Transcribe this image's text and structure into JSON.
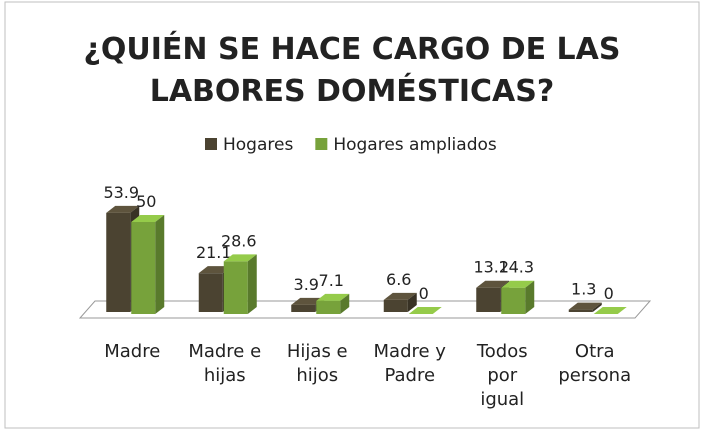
{
  "chart_data": {
    "type": "bar3d",
    "title": "¿QUIÉN SE HACE CARGO DE LAS\nLABORES DOMÉSTICAS?",
    "categories": [
      "Madre",
      "Madre e\nhijas",
      "Hijas e\nhijos",
      "Madre y\nPadre",
      "Todos\npor\nigual",
      "Otra\npersona"
    ],
    "series": [
      {
        "name": "Hogares",
        "color": "#4b4331",
        "values": [
          53.9,
          21.1,
          3.9,
          6.6,
          13.2,
          1.3
        ]
      },
      {
        "name": "Hogares ampliados",
        "color": "#77a23b",
        "values": [
          50,
          28.6,
          7.1,
          0,
          14.3,
          0
        ]
      }
    ],
    "legend": "top"
  }
}
